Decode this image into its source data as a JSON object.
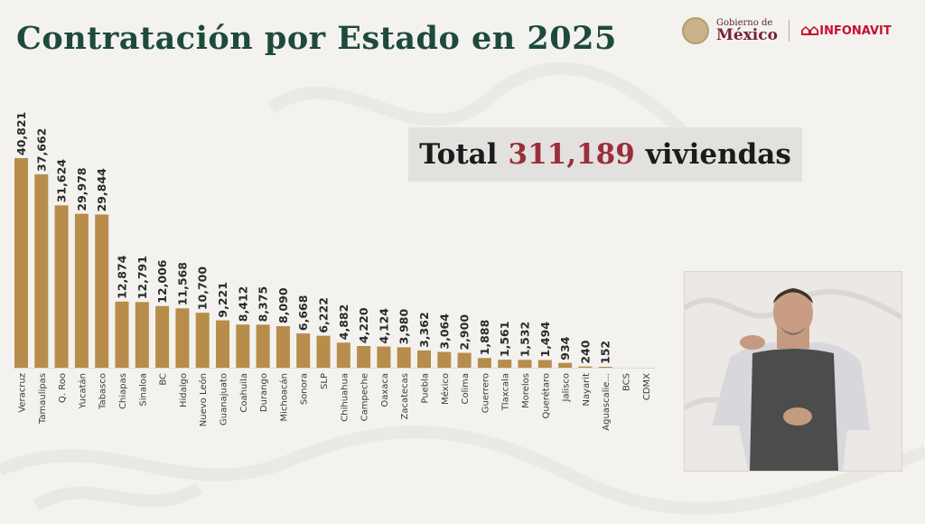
{
  "header": {
    "title": "Contratación por Estado en 2025",
    "logo_gobierno_small": "Gobierno de",
    "logo_gobierno_big": "México",
    "logo_infonavit": "INFONAVIT"
  },
  "total": {
    "prefix": "Total",
    "value": "311,189",
    "suffix": "viviendas"
  },
  "colors": {
    "bar": "#b88c4a",
    "title": "#1e4a3c",
    "total_value": "#9a2f3c"
  },
  "chart_data": {
    "type": "bar",
    "title": "Contratación por Estado en 2025",
    "xlabel": "",
    "ylabel": "",
    "ylim": [
      0,
      40821
    ],
    "grid": false,
    "categories": [
      "Veracruz",
      "Tamaulipas",
      "Q. Roo",
      "Yucatán",
      "Tabasco",
      "Chiapas",
      "Sinaloa",
      "BC",
      "Hidalgo",
      "Nuevo León",
      "Guanajuato",
      "Coahuila",
      "Durango",
      "Michoacán",
      "Sonora",
      "SLP",
      "Chihuahua",
      "Campeche",
      "Oaxaca",
      "Zacatecas",
      "Puebla",
      "México",
      "Colima",
      "Guerrero",
      "Tlaxcala",
      "Morelos",
      "Querétaro",
      "Jalisco",
      "Nayarit",
      "Aguascalie...",
      "BCS",
      "CDMX"
    ],
    "values": [
      40821,
      37662,
      31624,
      29978,
      29844,
      12874,
      12791,
      12006,
      11568,
      10700,
      9221,
      8412,
      8375,
      8090,
      6668,
      6222,
      4882,
      4220,
      4124,
      3980,
      3362,
      3064,
      2900,
      1888,
      1561,
      1532,
      1494,
      934,
      240,
      152,
      null,
      null
    ],
    "value_labels": [
      "40,821",
      "37,662",
      "31,624",
      "29,978",
      "29,844",
      "12,874",
      "12,791",
      "12,006",
      "11,568",
      "10,700",
      "9,221",
      "8,412",
      "8,375",
      "8,090",
      "6,668",
      "6,222",
      "4,882",
      "4,220",
      "4,124",
      "3,980",
      "3,362",
      "3,064",
      "2,900",
      "1,888",
      "1,561",
      "1,532",
      "1,494",
      "934",
      "240",
      "152",
      "",
      ""
    ]
  }
}
